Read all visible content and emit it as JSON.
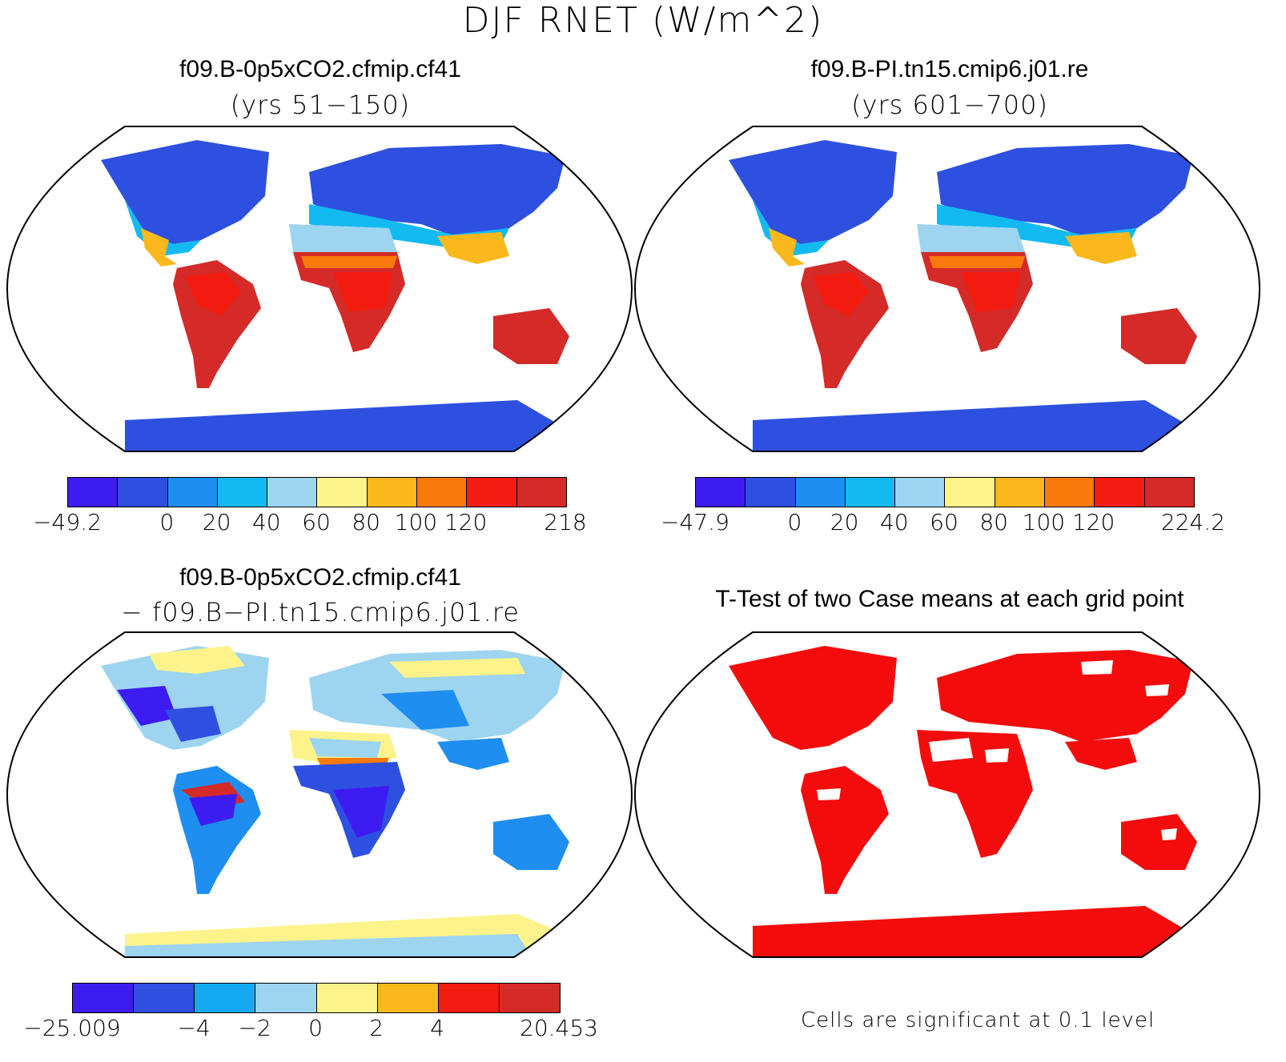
{
  "figure": {
    "title": "DJF RNET (W/m^2)"
  },
  "panels": [
    {
      "title": "f09.B-0p5xCO2.cfmip.cf41",
      "subtitle": "(yrs 51−150)",
      "colorbar": {
        "colors": [
          "#3d1cf2",
          "#2e50e0",
          "#1e8ef0",
          "#13baf2",
          "#9dd4f0",
          "#fdf38a",
          "#fbb81c",
          "#f97a0a",
          "#f41c10",
          "#d42a28"
        ],
        "labels": [
          "−49.2",
          "0",
          "20",
          "40",
          "60",
          "80",
          "100",
          "120",
          "218"
        ]
      }
    },
    {
      "title": "f09.B-PI.tn15.cmip6.j01.re",
      "subtitle": "(yrs 601−700)",
      "colorbar": {
        "colors": [
          "#3d1cf2",
          "#2e50e0",
          "#1e8ef0",
          "#13baf2",
          "#9dd4f0",
          "#fdf38a",
          "#fbb81c",
          "#f97a0a",
          "#f41c10",
          "#d42a28"
        ],
        "labels": [
          "−47.9",
          "0",
          "20",
          "40",
          "60",
          "80",
          "100",
          "120",
          "224.2"
        ]
      }
    },
    {
      "title": "f09.B-0p5xCO2.cfmip.cf41",
      "subtitle": "− f09.B−PI.tn15.cmip6.j01.re",
      "colorbar": {
        "colors": [
          "#3d1cf2",
          "#2e50e0",
          "#13aaf2",
          "#9dd4f0",
          "#fdf38a",
          "#fbb81c",
          "#f41c10",
          "#d42a28"
        ],
        "labels": [
          "−25.009",
          "−4",
          "−2",
          "0",
          "2",
          "4",
          "20.453"
        ]
      }
    },
    {
      "title": "T-Test of two Case means at each grid point",
      "note": "Cells are significant at 0.1 level"
    }
  ]
}
